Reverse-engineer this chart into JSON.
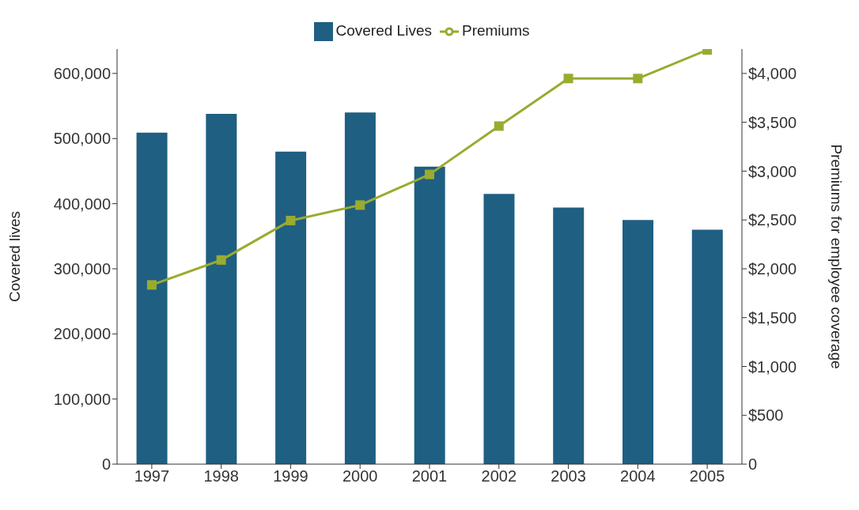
{
  "chart_data": {
    "type": "bar",
    "categories": [
      "1997",
      "1998",
      "1999",
      "2000",
      "2001",
      "2002",
      "2003",
      "2004",
      "2005"
    ],
    "series": [
      {
        "name": "Covered Lives",
        "color": "#1f5f82",
        "values": [
          509000,
          538000,
          480000,
          540000,
          457000,
          415000,
          394000,
          375000,
          360000
        ]
      },
      {
        "name": "Premiums",
        "type": "line",
        "axis": "y2",
        "color": "#9aab2f",
        "marker": "square",
        "values": [
          1835,
          2090,
          2494,
          2652,
          2966,
          3461,
          3948,
          3948,
          4240
        ]
      }
    ],
    "ylabel": "Covered lives",
    "y2label": "Premiums for employee coverage",
    "ylim": [
      0,
      637500
    ],
    "yticks": [
      0,
      {
        "value": 100000,
        "label": "100,000"
      },
      {
        "value": 200000,
        "label": "200,000"
      },
      {
        "value": 300000,
        "label": "300,000"
      },
      {
        "value": 400000,
        "label": "400,000"
      },
      {
        "value": 500000,
        "label": "500,000"
      },
      {
        "value": 600000,
        "label": "600,000"
      }
    ],
    "y2lim": [
      0,
      4250
    ],
    "y2ticks": [
      0,
      {
        "value": 500,
        "label": "$500"
      },
      {
        "value": 1000,
        "label": "$1,000"
      },
      {
        "value": 1500,
        "label": "$1,500"
      },
      {
        "value": 2000,
        "label": "$2,000"
      },
      {
        "value": 2500,
        "label": "$2,500"
      },
      {
        "value": 3000,
        "label": "$3,000"
      },
      {
        "value": 3500,
        "label": "$3,500"
      },
      {
        "value": 4000,
        "label": "$4,000"
      }
    ],
    "legend": "top",
    "grid": false
  }
}
